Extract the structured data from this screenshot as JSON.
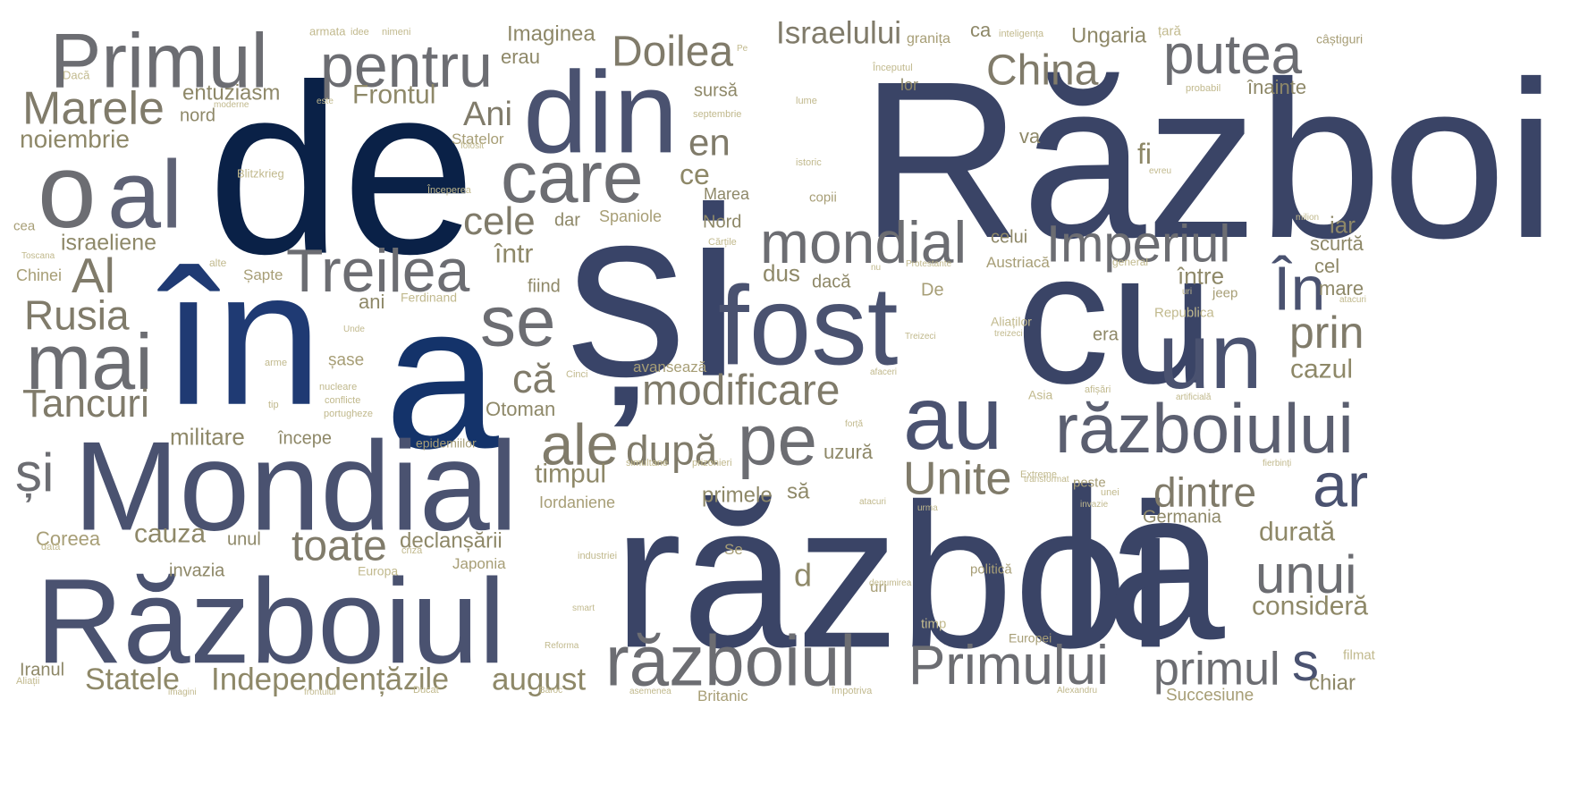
{
  "palette": {
    "navy": "#0a2147",
    "deep_blue": "#1f3a73",
    "slate": "#3a4466",
    "steel": "#4a5270",
    "gray": "#6c6d72",
    "warm_gray": "#807b6a",
    "olive": "#8e8868",
    "khaki": "#a79e76",
    "light_khaki": "#c1b98d"
  },
  "words": [
    {
      "text": "Război",
      "color": "#3a4466"
    },
    {
      "text": "război",
      "color": "#3a4466"
    },
    {
      "text": "de",
      "color": "#0a2147"
    },
    {
      "text": "în",
      "color": "#1f3a73"
    },
    {
      "text": "a",
      "color": "#14336a"
    },
    {
      "text": "și",
      "color": "#394468"
    },
    {
      "text": "la",
      "color": "#3a4466"
    },
    {
      "text": "cu",
      "color": "#3a4466"
    },
    {
      "text": "fost",
      "color": "#4a5270"
    },
    {
      "text": "Mondial",
      "color": "#4a5270"
    },
    {
      "text": "Războiul",
      "color": "#4a5270"
    },
    {
      "text": "din",
      "color": "#4a5270"
    },
    {
      "text": "o",
      "color": "#6c6d72"
    },
    {
      "text": "al",
      "color": "#5e6275"
    },
    {
      "text": "Primul",
      "color": "#6c6d72"
    },
    {
      "text": "pentru",
      "color": "#6c6d72"
    },
    {
      "text": "care",
      "color": "#6c6d72"
    },
    {
      "text": "un",
      "color": "#4a5270"
    },
    {
      "text": "au",
      "color": "#4a5270"
    },
    {
      "text": "războiului",
      "color": "#5b5f70"
    },
    {
      "text": "mondial",
      "color": "#6c6d72"
    },
    {
      "text": "Imperiul",
      "color": "#6c6d72"
    },
    {
      "text": "Treilea",
      "color": "#6c6d72"
    },
    {
      "text": "se",
      "color": "#6c6d72"
    },
    {
      "text": "pe",
      "color": "#6c6d72"
    },
    {
      "text": "mai",
      "color": "#6c6d72"
    },
    {
      "text": "putea",
      "color": "#6c6d72"
    },
    {
      "text": "ar",
      "color": "#4a5270"
    },
    {
      "text": "războiul",
      "color": "#6c6d72"
    },
    {
      "text": "Primului",
      "color": "#6c6d72"
    },
    {
      "text": "primul",
      "color": "#6c6d72"
    },
    {
      "text": "s",
      "color": "#4a5270"
    },
    {
      "text": "unui",
      "color": "#6c6d72"
    },
    {
      "text": "În",
      "color": "#4a5270"
    },
    {
      "text": "Doilea",
      "color": "#807b6a"
    },
    {
      "text": "China",
      "color": "#807b6a"
    },
    {
      "text": "Marele",
      "color": "#807b6a"
    },
    {
      "text": "Israelului",
      "color": "#807b6a"
    },
    {
      "text": "modificare",
      "color": "#807b6a"
    },
    {
      "text": "ale",
      "color": "#807b6a"
    },
    {
      "text": "după",
      "color": "#807b6a"
    },
    {
      "text": "Unite",
      "color": "#807b6a"
    },
    {
      "text": "dintre",
      "color": "#807b6a"
    },
    {
      "text": "prin",
      "color": "#807b6a"
    },
    {
      "text": "toate",
      "color": "#807b6a"
    },
    {
      "text": "Rusia",
      "color": "#807b6a"
    },
    {
      "text": "Al",
      "color": "#807b6a"
    },
    {
      "text": "Tancuri",
      "color": "#807b6a"
    },
    {
      "text": "și",
      "color": "#6c6d72"
    },
    {
      "text": "cele",
      "color": "#807b6a"
    },
    {
      "text": "că",
      "color": "#807b6a"
    },
    {
      "text": "en",
      "color": "#807b6a"
    },
    {
      "text": "Ani",
      "color": "#807b6a"
    },
    {
      "text": "Independență",
      "color": "#8e8868"
    },
    {
      "text": "Statele",
      "color": "#8e8868"
    },
    {
      "text": "august",
      "color": "#8e8868"
    },
    {
      "text": "zile",
      "color": "#8e8868"
    },
    {
      "text": "cazul",
      "color": "#8e8868"
    },
    {
      "text": "durată",
      "color": "#8e8868"
    },
    {
      "text": "consideră",
      "color": "#8e8868"
    },
    {
      "text": "chiar",
      "color": "#8e8868"
    },
    {
      "text": "cauza",
      "color": "#8e8868"
    },
    {
      "text": "Frontul",
      "color": "#8e8868"
    },
    {
      "text": "entuziasm",
      "color": "#8e8868"
    },
    {
      "text": "noiembrie",
      "color": "#8e8868"
    },
    {
      "text": "militare",
      "color": "#8e8868"
    },
    {
      "text": "israeliene",
      "color": "#8e8868"
    },
    {
      "text": "Imaginea",
      "color": "#8e8868"
    },
    {
      "text": "erau",
      "color": "#8e8868"
    },
    {
      "text": "Ungaria",
      "color": "#8e8868"
    },
    {
      "text": "înainte",
      "color": "#8e8868"
    },
    {
      "text": "iar",
      "color": "#8e8868"
    },
    {
      "text": "cel",
      "color": "#8e8868"
    },
    {
      "text": "scurtă",
      "color": "#8e8868"
    },
    {
      "text": "mare",
      "color": "#8e8868"
    },
    {
      "text": "între",
      "color": "#8e8868"
    },
    {
      "text": "dus",
      "color": "#8e8868"
    },
    {
      "text": "dacă",
      "color": "#8e8868"
    },
    {
      "text": "ce",
      "color": "#8e8868"
    },
    {
      "text": "fi",
      "color": "#8e8868"
    },
    {
      "text": "va",
      "color": "#8e8868"
    },
    {
      "text": "timpul",
      "color": "#8e8868"
    },
    {
      "text": "declanșării",
      "color": "#8e8868"
    },
    {
      "text": "primele",
      "color": "#8e8868"
    },
    {
      "text": "să",
      "color": "#8e8868"
    },
    {
      "text": "Otoman",
      "color": "#8e8868"
    },
    {
      "text": "începe",
      "color": "#8e8868"
    },
    {
      "text": "uzură",
      "color": "#8e8868"
    },
    {
      "text": "Germania",
      "color": "#8e8868"
    },
    {
      "text": "Coreea",
      "color": "#a79e76"
    },
    {
      "text": "unul",
      "color": "#8e8868"
    },
    {
      "text": "invazia",
      "color": "#8e8868"
    },
    {
      "text": "Iranul",
      "color": "#8e8868"
    },
    {
      "text": "d",
      "color": "#8e8868"
    },
    {
      "text": "într",
      "color": "#8e8868"
    },
    {
      "text": "ani",
      "color": "#8e8868"
    },
    {
      "text": "fiind",
      "color": "#8e8868"
    },
    {
      "text": "Nord",
      "color": "#8e8868"
    },
    {
      "text": "Marea",
      "color": "#8e8868"
    },
    {
      "text": "dar",
      "color": "#8e8868"
    },
    {
      "text": "nord",
      "color": "#8e8868"
    },
    {
      "text": "sursă",
      "color": "#8e8868"
    },
    {
      "text": "lor",
      "color": "#8e8868"
    },
    {
      "text": "ca",
      "color": "#8e8868"
    },
    {
      "text": "celui",
      "color": "#8e8868"
    },
    {
      "text": "era",
      "color": "#8e8868"
    },
    {
      "text": "Iordaniene",
      "color": "#a79e76"
    },
    {
      "text": "Spaniole",
      "color": "#a79e76"
    },
    {
      "text": "Statelor",
      "color": "#a79e76"
    },
    {
      "text": "Japonia",
      "color": "#a79e76"
    },
    {
      "text": "Europa",
      "color": "#c1b98d"
    },
    {
      "text": "epidemiilor",
      "color": "#a79e76"
    },
    {
      "text": "avansează",
      "color": "#a79e76"
    },
    {
      "text": "Britanic",
      "color": "#a79e76"
    },
    {
      "text": "Succesiune",
      "color": "#a79e76"
    },
    {
      "text": "Austriacă",
      "color": "#a79e76"
    },
    {
      "text": "Republica",
      "color": "#c1b98d"
    },
    {
      "text": "Aliaților",
      "color": "#c1b98d"
    },
    {
      "text": "jeep",
      "color": "#a79e76"
    },
    {
      "text": "Europei",
      "color": "#a79e76"
    },
    {
      "text": "politică",
      "color": "#a79e76"
    },
    {
      "text": "uri",
      "color": "#a79e76"
    },
    {
      "text": "De",
      "color": "#a79e76"
    },
    {
      "text": "șase",
      "color": "#a79e76"
    },
    {
      "text": "Șapte",
      "color": "#a79e76"
    },
    {
      "text": "Ferdinand",
      "color": "#c1b98d"
    },
    {
      "text": "granița",
      "color": "#a79e76"
    },
    {
      "text": "câștiguri",
      "color": "#a79e76"
    },
    {
      "text": "copii",
      "color": "#a79e76"
    },
    {
      "text": "peste",
      "color": "#a79e76"
    },
    {
      "text": "Asia",
      "color": "#c1b98d"
    },
    {
      "text": "Se",
      "color": "#a79e76"
    },
    {
      "text": "filmat",
      "color": "#c1b98d"
    },
    {
      "text": "timp",
      "color": "#c1b98d"
    },
    {
      "text": "Chinei",
      "color": "#a79e76"
    },
    {
      "text": "cea",
      "color": "#a79e76"
    },
    {
      "text": "armata",
      "color": "#c1b98d"
    },
    {
      "text": "idee",
      "color": "#c1b98d"
    },
    {
      "text": "nimeni",
      "color": "#c1b98d"
    },
    {
      "text": "inteligența",
      "color": "#c1b98d"
    },
    {
      "text": "Începutul",
      "color": "#c1b98d"
    },
    {
      "text": "probabil",
      "color": "#c1b98d"
    },
    {
      "text": "lume",
      "color": "#c1b98d"
    },
    {
      "text": "septembrie",
      "color": "#c1b98d"
    },
    {
      "text": "moderne",
      "color": "#c1b98d"
    },
    {
      "text": "Dacă",
      "color": "#c1b98d"
    },
    {
      "text": "Blitzkrieg",
      "color": "#c1b98d"
    },
    {
      "text": "folosit",
      "color": "#c1b98d"
    },
    {
      "text": "Începerea",
      "color": "#c1b98d"
    },
    {
      "text": "istoric",
      "color": "#c1b98d"
    },
    {
      "text": "evreu",
      "color": "#c1b98d"
    },
    {
      "text": "milion",
      "color": "#c1b98d"
    },
    {
      "text": "Cărțile",
      "color": "#c1b98d"
    },
    {
      "text": "Protestante",
      "color": "#c1b98d"
    },
    {
      "text": "general",
      "color": "#c1b98d"
    },
    {
      "text": "alte",
      "color": "#c1b98d"
    },
    {
      "text": "Toscana",
      "color": "#c1b98d"
    },
    {
      "text": "nu",
      "color": "#c1b98d"
    },
    {
      "text": "Unde",
      "color": "#c1b98d"
    },
    {
      "text": "arme",
      "color": "#c1b98d"
    },
    {
      "text": "nucleare",
      "color": "#c1b98d"
    },
    {
      "text": "conflicte",
      "color": "#c1b98d"
    },
    {
      "text": "portugheze",
      "color": "#c1b98d"
    },
    {
      "text": "Cinci",
      "color": "#c1b98d"
    },
    {
      "text": "tip",
      "color": "#c1b98d"
    },
    {
      "text": "treizeci",
      "color": "#c1b98d"
    },
    {
      "text": "Treizeci",
      "color": "#c1b98d"
    },
    {
      "text": "afaceri",
      "color": "#c1b98d"
    },
    {
      "text": "afișări",
      "color": "#c1b98d"
    },
    {
      "text": "artificială",
      "color": "#c1b98d"
    },
    {
      "text": "forță",
      "color": "#c1b98d"
    },
    {
      "text": "simultane",
      "color": "#c1b98d"
    },
    {
      "text": "prizonieri",
      "color": "#c1b98d"
    },
    {
      "text": "Extreme",
      "color": "#c1b98d"
    },
    {
      "text": "unei",
      "color": "#c1b98d"
    },
    {
      "text": "atacuri",
      "color": "#c1b98d"
    },
    {
      "text": "urma",
      "color": "#c1b98d"
    },
    {
      "text": "invazie",
      "color": "#c1b98d"
    },
    {
      "text": "fierbinți",
      "color": "#c1b98d"
    },
    {
      "text": "dată",
      "color": "#c1b98d"
    },
    {
      "text": "criză",
      "color": "#c1b98d"
    },
    {
      "text": "industriei",
      "color": "#c1b98d"
    },
    {
      "text": "smart",
      "color": "#c1b98d"
    },
    {
      "text": "Reforma",
      "color": "#c1b98d"
    },
    {
      "text": "Aliații",
      "color": "#c1b98d"
    },
    {
      "text": "imagini",
      "color": "#c1b98d"
    },
    {
      "text": "frontului",
      "color": "#c1b98d"
    },
    {
      "text": "Ducat",
      "color": "#c1b98d"
    },
    {
      "text": "Baroc",
      "color": "#c1b98d"
    },
    {
      "text": "asemenea",
      "color": "#c1b98d"
    },
    {
      "text": "împotriva",
      "color": "#c1b98d"
    },
    {
      "text": "Alexandru",
      "color": "#c1b98d"
    },
    {
      "text": "transformat",
      "color": "#c1b98d"
    },
    {
      "text": "denumirea",
      "color": "#c1b98d"
    },
    {
      "text": "atacuri",
      "color": "#c1b98d"
    },
    {
      "text": "uri",
      "color": "#c1b98d"
    },
    {
      "text": "Pe",
      "color": "#c1b98d"
    },
    {
      "text": "este",
      "color": "#c1b98d"
    },
    {
      "text": "țară",
      "color": "#c1b98d"
    },
    {
      "text": "erei",
      "color": "#c1b98d"
    },
    {
      "text": "Statele",
      "color": "#c1b98d"
    }
  ]
}
